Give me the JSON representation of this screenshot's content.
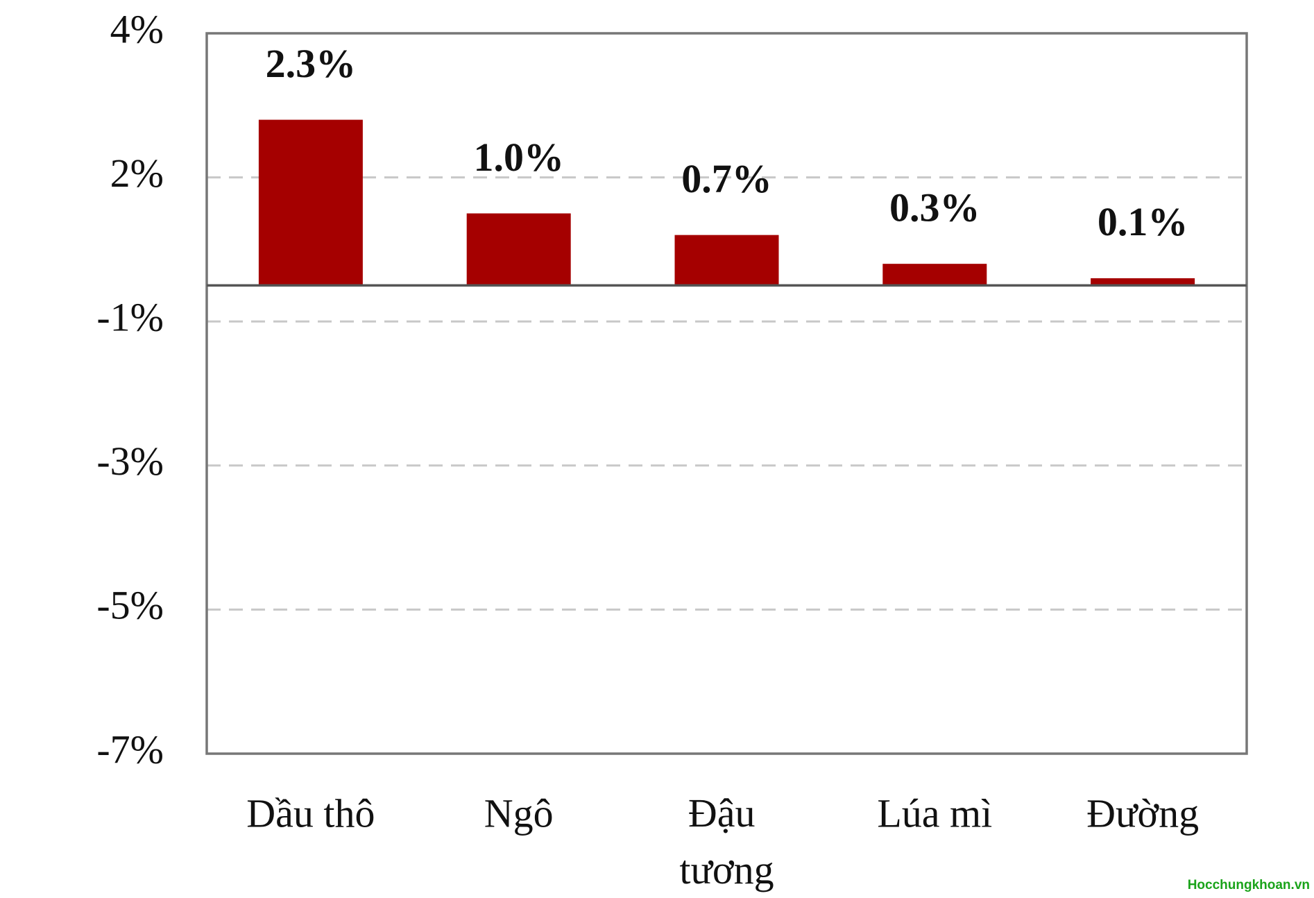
{
  "chart_data": {
    "type": "bar",
    "categories": [
      "Dầu thô",
      "Ngô",
      "Đậu tương",
      "Lúa mì",
      "Đường"
    ],
    "values": [
      2.3,
      1.0,
      0.7,
      0.3,
      0.1
    ],
    "value_labels": [
      "2.3%",
      "1.0%",
      "0.7%",
      "0.3%",
      "0.1%"
    ],
    "color": "#a50000",
    "ylim": [
      -6.5,
      3.5
    ],
    "yticks": [
      {
        "value": 3.5,
        "label": "4%"
      },
      {
        "value": 1.5,
        "label": "2%"
      },
      {
        "value": -0.5,
        "label": "-1%"
      },
      {
        "value": -2.5,
        "label": "-3%"
      },
      {
        "value": -4.5,
        "label": "-5%"
      },
      {
        "value": -6.5,
        "label": "-7%"
      }
    ],
    "grid": true
  },
  "watermark": "Hocchungkhoan.vn"
}
